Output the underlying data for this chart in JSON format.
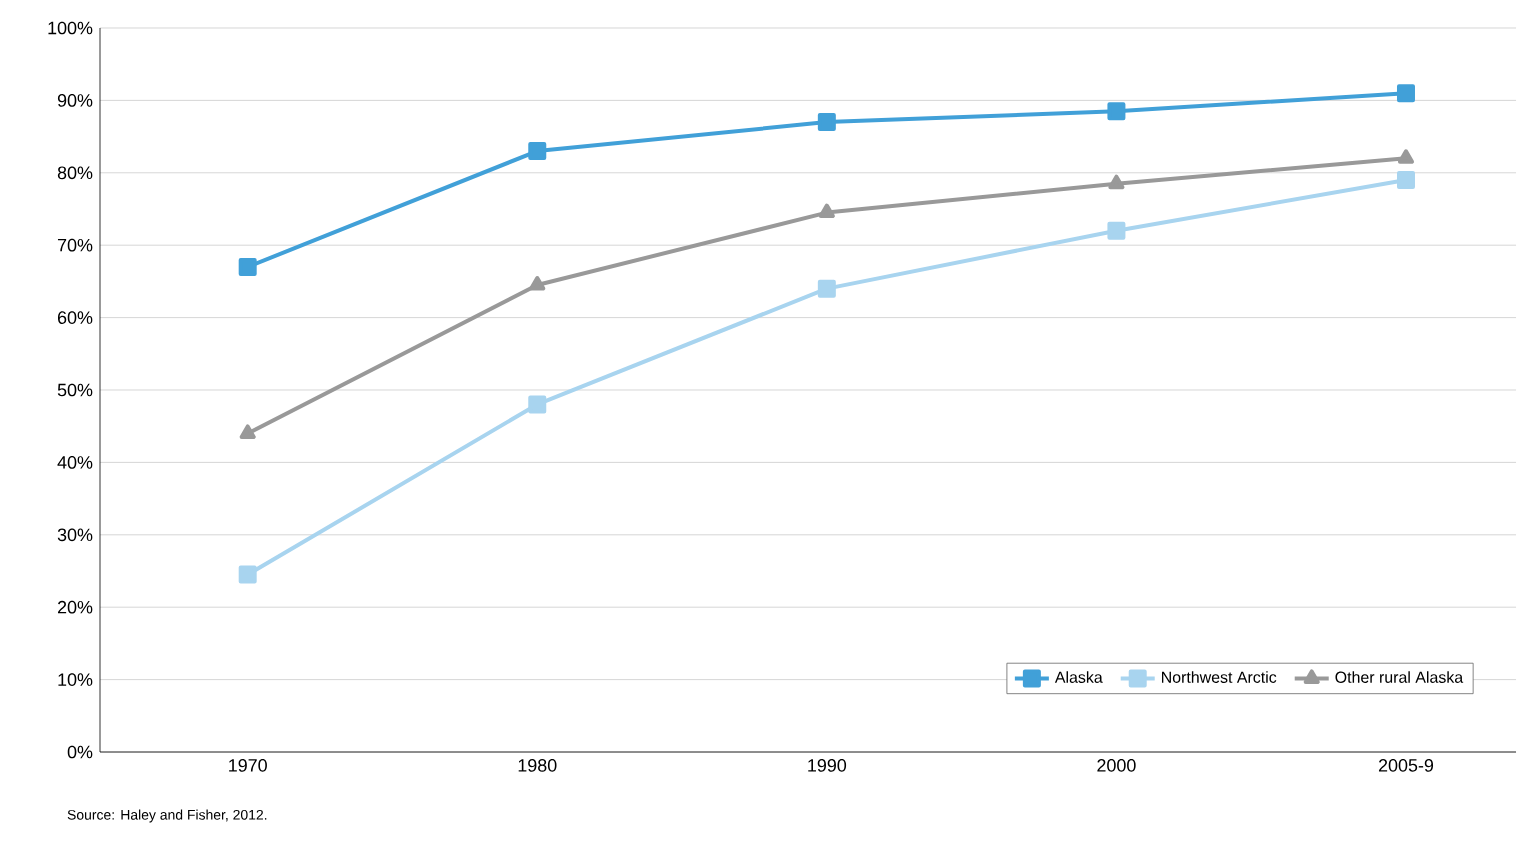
{
  "chart_data": {
    "type": "line",
    "categories": [
      "1970",
      "1980",
      "1990",
      "2000",
      "2005-9"
    ],
    "series": [
      {
        "name": "Alaska",
        "color": "#41a0d8",
        "marker": "square",
        "values": [
          67,
          83,
          87,
          88.5,
          91
        ]
      },
      {
        "name": "Northwest Arctic",
        "color": "#a8d4ef",
        "marker": "square",
        "values": [
          24.5,
          48,
          64,
          72,
          79
        ]
      },
      {
        "name": "Other rural Alaska",
        "color": "#999999",
        "marker": "triangle",
        "values": [
          44,
          64.5,
          74.5,
          78.5,
          82
        ]
      }
    ],
    "ylim": [
      0,
      100
    ],
    "yticks": [
      {
        "value": 0,
        "label": "0%"
      },
      {
        "value": 10,
        "label": "10%"
      },
      {
        "value": 20,
        "label": "20%"
      },
      {
        "value": 30,
        "label": "30%"
      },
      {
        "value": 40,
        "label": "40%"
      },
      {
        "value": 50,
        "label": "50%"
      },
      {
        "value": 60,
        "label": "60%"
      },
      {
        "value": 70,
        "label": "70%"
      },
      {
        "value": 80,
        "label": "80%"
      },
      {
        "value": 90,
        "label": "90%"
      },
      {
        "value": 100,
        "label": "100%"
      }
    ],
    "grid": "y",
    "legend": "bottom right",
    "line_style": "solid",
    "annotations": [
      "Source: Haley and Fisher, 2012."
    ]
  }
}
